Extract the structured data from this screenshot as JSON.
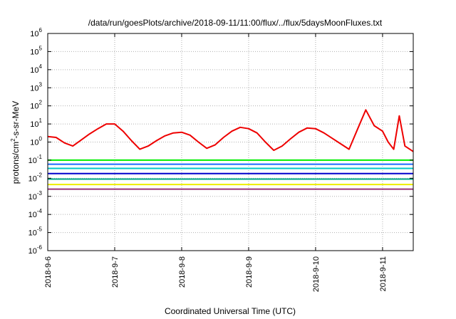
{
  "chart_data": {
    "type": "line",
    "title": "/data/run/goesPlots/archive/2018-09-11/11:00/flux/../flux/5daysMoonFluxes.txt",
    "xlabel": "Coordinated Universal Time (UTC)",
    "ylabel": {
      "pre": "protons/cm",
      "sup": "2",
      "post": "-s-sr-MeV"
    },
    "y_scale": "log",
    "ylim_exp": [
      -6,
      6
    ],
    "y_ticks": [
      {
        "base": "10",
        "exp": "-6"
      },
      {
        "base": "10",
        "exp": "-5"
      },
      {
        "base": "10",
        "exp": "-4"
      },
      {
        "base": "10",
        "exp": "-3"
      },
      {
        "base": "10",
        "exp": "-2"
      },
      {
        "base": "10",
        "exp": "-1"
      },
      {
        "base": "10",
        "exp": "0"
      },
      {
        "base": "10",
        "exp": "1"
      },
      {
        "base": "10",
        "exp": "2"
      },
      {
        "base": "10",
        "exp": "3"
      },
      {
        "base": "10",
        "exp": "4"
      },
      {
        "base": "10",
        "exp": "5"
      },
      {
        "base": "10",
        "exp": "6"
      }
    ],
    "x_range_days": [
      "2018-09-06 00:00",
      "2018-09-11 11:00"
    ],
    "x_ticks": [
      "2018-9-6",
      "2018-9-7",
      "2018-9-8",
      "2018-9-9",
      "2018-9-10",
      "2018-9-11"
    ],
    "grid": true,
    "legend": "none",
    "series": [
      {
        "color": "#ee0000",
        "points": [
          [
            "2018-09-06 00:00",
            2.0
          ],
          [
            "2018-09-06 03:00",
            1.8
          ],
          [
            "2018-09-06 06:00",
            0.9
          ],
          [
            "2018-09-06 09:00",
            0.6
          ],
          [
            "2018-09-06 12:00",
            1.3
          ],
          [
            "2018-09-06 15:00",
            2.8
          ],
          [
            "2018-09-06 18:00",
            5.5
          ],
          [
            "2018-09-06 21:00",
            10
          ],
          [
            "2018-09-07 00:00",
            10
          ],
          [
            "2018-09-07 03:00",
            4.0
          ],
          [
            "2018-09-07 06:00",
            1.2
          ],
          [
            "2018-09-07 09:00",
            0.4
          ],
          [
            "2018-09-07 12:00",
            0.6
          ],
          [
            "2018-09-07 15:00",
            1.2
          ],
          [
            "2018-09-07 18:00",
            2.2
          ],
          [
            "2018-09-07 21:00",
            3.2
          ],
          [
            "2018-09-08 00:00",
            3.5
          ],
          [
            "2018-09-08 03:00",
            2.4
          ],
          [
            "2018-09-08 06:00",
            1.0
          ],
          [
            "2018-09-08 09:00",
            0.45
          ],
          [
            "2018-09-08 12:00",
            0.7
          ],
          [
            "2018-09-08 15:00",
            1.8
          ],
          [
            "2018-09-08 18:00",
            4.0
          ],
          [
            "2018-09-08 21:00",
            6.5
          ],
          [
            "2018-09-09 00:00",
            5.5
          ],
          [
            "2018-09-09 03:00",
            3.2
          ],
          [
            "2018-09-09 06:00",
            1.0
          ],
          [
            "2018-09-09 09:00",
            0.35
          ],
          [
            "2018-09-09 12:00",
            0.6
          ],
          [
            "2018-09-09 15:00",
            1.5
          ],
          [
            "2018-09-09 18:00",
            3.5
          ],
          [
            "2018-09-09 21:00",
            6.0
          ],
          [
            "2018-09-10 00:00",
            5.5
          ],
          [
            "2018-09-10 03:00",
            3.2
          ],
          [
            "2018-09-10 06:00",
            1.6
          ],
          [
            "2018-09-10 09:00",
            0.8
          ],
          [
            "2018-09-10 12:00",
            0.4
          ],
          [
            "2018-09-10 15:00",
            5.0
          ],
          [
            "2018-09-10 18:00",
            60
          ],
          [
            "2018-09-10 21:00",
            8.0
          ],
          [
            "2018-09-11 00:00",
            4.0
          ],
          [
            "2018-09-11 02:00",
            1.0
          ],
          [
            "2018-09-11 04:00",
            0.4
          ],
          [
            "2018-09-11 06:00",
            28
          ],
          [
            "2018-09-11 08:00",
            0.6
          ],
          [
            "2018-09-11 11:00",
            0.3
          ]
        ]
      },
      {
        "color": "#00ee00",
        "points": [
          [
            "2018-09-06 00:00",
            0.1
          ],
          [
            "2018-09-11 11:00",
            0.1
          ]
        ]
      },
      {
        "color": "#1a6aff",
        "points": [
          [
            "2018-09-06 00:00",
            0.06
          ],
          [
            "2018-09-11 11:00",
            0.06
          ]
        ]
      },
      {
        "color": "#00c8c8",
        "points": [
          [
            "2018-09-06 00:00",
            0.035
          ],
          [
            "2018-09-11 11:00",
            0.035
          ]
        ]
      },
      {
        "color": "#0000cc",
        "points": [
          [
            "2018-09-06 00:00",
            0.018
          ],
          [
            "2018-09-11 11:00",
            0.018
          ]
        ]
      },
      {
        "color": "#00aa88",
        "points": [
          [
            "2018-09-06 00:00",
            0.009
          ],
          [
            "2018-09-11 11:00",
            0.009
          ]
        ]
      },
      {
        "color": "#eeee00",
        "points": [
          [
            "2018-09-06 00:00",
            0.0045
          ],
          [
            "2018-09-11 11:00",
            0.0045
          ]
        ]
      },
      {
        "color": "#993377",
        "points": [
          [
            "2018-09-06 00:00",
            0.0025
          ],
          [
            "2018-09-11 11:00",
            0.0025
          ]
        ]
      }
    ]
  }
}
